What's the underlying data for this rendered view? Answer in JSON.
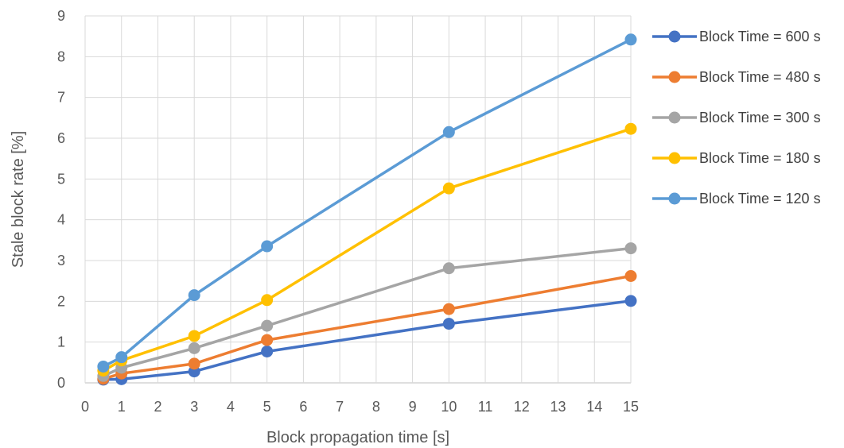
{
  "chart_data": {
    "type": "line",
    "title": "",
    "xlabel": "Block propagation time [s]",
    "ylabel": "Stale block rate [%]",
    "xlim": [
      0,
      15
    ],
    "ylim": [
      0,
      9
    ],
    "xticks": [
      0,
      1,
      2,
      3,
      4,
      5,
      6,
      7,
      8,
      9,
      10,
      11,
      12,
      13,
      14,
      15
    ],
    "yticks": [
      0,
      1,
      2,
      3,
      4,
      5,
      6,
      7,
      8,
      9
    ],
    "grid": true,
    "legend_position": "right",
    "x": [
      0.5,
      1,
      3,
      5,
      10,
      15
    ],
    "series": [
      {
        "name": "Block Time = 600 s",
        "color": "#4472C4",
        "values": [
          0.08,
          0.09,
          0.28,
          0.77,
          1.45,
          2.01
        ]
      },
      {
        "name": "Block Time = 480 s",
        "color": "#ED7D31",
        "values": [
          0.1,
          0.23,
          0.47,
          1.05,
          1.81,
          2.62
        ]
      },
      {
        "name": "Block Time = 300 s",
        "color": "#A5A5A5",
        "values": [
          0.17,
          0.37,
          0.85,
          1.4,
          2.81,
          3.3
        ]
      },
      {
        "name": "Block Time = 180 s",
        "color": "#FFC000",
        "values": [
          0.3,
          0.55,
          1.15,
          2.03,
          4.77,
          6.23
        ]
      },
      {
        "name": "Block Time = 120 s",
        "color": "#5B9BD5",
        "values": [
          0.4,
          0.63,
          2.15,
          3.35,
          6.15,
          8.42
        ]
      }
    ]
  }
}
